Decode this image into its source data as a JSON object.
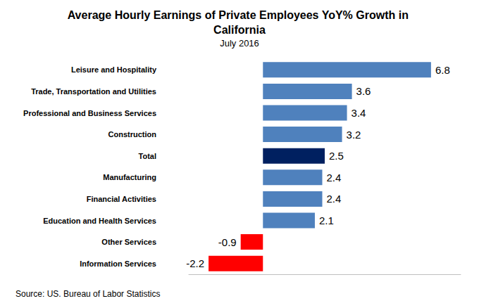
{
  "chart_data": {
    "type": "bar",
    "title": "Average Hourly Earnings of Private Employees YoY% Growth in California",
    "subtitle": "July 2016",
    "annotations": [
      "Source: US. Bureau of Labor Statistics"
    ],
    "orientation": "horizontal",
    "categories": [
      "Leisure and Hospitality",
      "Trade, Transportation and Utilities",
      "Professional and Business Services",
      "Construction",
      "Total",
      "Manufacturing",
      "Financial Activities",
      "Education and Health Services",
      "Other Services",
      "Information Services"
    ],
    "values": [
      6.8,
      3.6,
      3.4,
      3.2,
      2.5,
      2.4,
      2.4,
      2.1,
      -0.9,
      -2.2
    ],
    "colors": [
      "#4f81bd",
      "#4f81bd",
      "#4f81bd",
      "#4f81bd",
      "#002060",
      "#4f81bd",
      "#4f81bd",
      "#4f81bd",
      "#ff0000",
      "#ff0000"
    ],
    "xlim": [
      -3,
      8
    ],
    "xticks": [],
    "data_labels": true,
    "tick_labels": "y",
    "grid": false
  }
}
